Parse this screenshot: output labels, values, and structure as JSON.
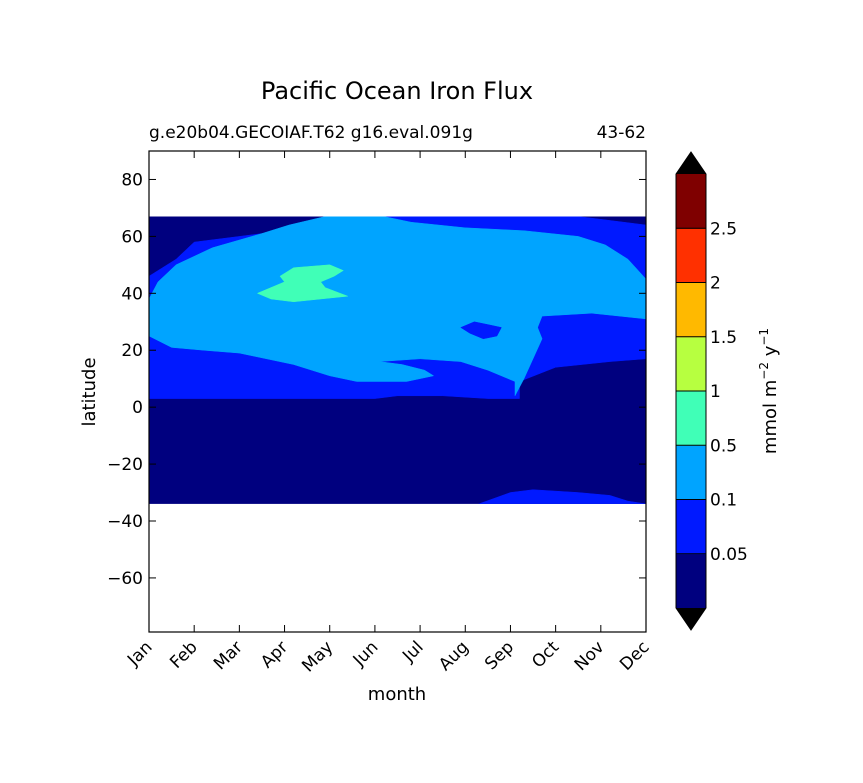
{
  "chart_data": {
    "type": "heatmap",
    "title": "Pacific Ocean Iron Flux",
    "subtitle_left": "g.e20b04.GECOIAF.T62 g16.eval.091g",
    "subtitle_right": "43-62",
    "xlabel": "month",
    "ylabel": "latitude",
    "x_ticks": [
      "Jan",
      "Feb",
      "Mar",
      "Apr",
      "May",
      "Jun",
      "Jul",
      "Aug",
      "Sep",
      "Oct",
      "Nov",
      "Dec"
    ],
    "ylim": [
      -79,
      90
    ],
    "y_ticks": [
      -60,
      -40,
      -20,
      0,
      20,
      40,
      60,
      80
    ],
    "y_tick_labels": [
      "−60",
      "−40",
      "−20",
      "0",
      "20",
      "40",
      "60",
      "80"
    ],
    "data_extent": {
      "lat_min": -34,
      "lat_max": 67
    },
    "colorbar": {
      "label_main": "mmol m",
      "label_exp1": "−2",
      "label_mid": " y",
      "label_exp2": "−1",
      "levels": [
        0.05,
        0.1,
        0.5,
        1,
        1.5,
        2,
        2.5
      ],
      "tick_labels": [
        "0.05",
        "0.1",
        "0.5",
        "1",
        "1.5",
        "2",
        "2.5"
      ],
      "colors": [
        "#00007f",
        "#0019ff",
        "#00a4ff",
        "#40ffb7",
        "#b7ff40",
        "#ffb900",
        "#ff3000",
        "#7f0000"
      ],
      "extend": "both",
      "extend_color": "#000000"
    },
    "regions": [
      {
        "level": 0,
        "polygon": [
          [
            0,
            -34
          ],
          [
            11,
            -34
          ],
          [
            11,
            67
          ],
          [
            0,
            67
          ]
        ]
      },
      {
        "level": 1,
        "polygon": [
          [
            0,
            46
          ],
          [
            0.6,
            52
          ],
          [
            1,
            58
          ],
          [
            2,
            60
          ],
          [
            3,
            62
          ],
          [
            3.7,
            66
          ],
          [
            3.9,
            67
          ],
          [
            9.5,
            67
          ],
          [
            10,
            66
          ],
          [
            11,
            64
          ],
          [
            11,
            17
          ],
          [
            10.2,
            16
          ],
          [
            9,
            14
          ],
          [
            8.2,
            9
          ],
          [
            8.2,
            3
          ],
          [
            7.5,
            3
          ],
          [
            6.5,
            4
          ],
          [
            5.5,
            4
          ],
          [
            5,
            3
          ],
          [
            0,
            3
          ]
        ]
      },
      {
        "level": 1,
        "polygon": [
          [
            7.3,
            -34
          ],
          [
            8,
            -30
          ],
          [
            8.5,
            -29
          ],
          [
            9.5,
            -30
          ],
          [
            10.2,
            -31
          ],
          [
            10.6,
            -33
          ],
          [
            11,
            -34
          ]
        ]
      },
      {
        "level": 2,
        "polygon": [
          [
            0,
            25
          ],
          [
            0.5,
            21
          ],
          [
            1.2,
            20
          ],
          [
            2,
            19
          ],
          [
            2.6,
            17
          ],
          [
            3.2,
            15
          ],
          [
            4,
            11
          ],
          [
            4.6,
            9
          ],
          [
            5.7,
            9
          ],
          [
            6.3,
            11
          ],
          [
            6.1,
            13
          ],
          [
            5.6,
            15
          ],
          [
            5.1,
            16
          ],
          [
            6,
            17
          ],
          [
            6.9,
            16
          ],
          [
            7.5,
            13
          ],
          [
            8.1,
            9
          ],
          [
            8.1,
            4
          ],
          [
            8.3,
            10
          ],
          [
            8.7,
            24
          ],
          [
            8.6,
            28
          ],
          [
            8.7,
            32
          ],
          [
            9.8,
            33
          ],
          [
            11,
            31
          ],
          [
            11,
            45
          ],
          [
            10.6,
            52
          ],
          [
            10.1,
            57
          ],
          [
            9.5,
            60
          ],
          [
            8.3,
            62
          ],
          [
            7,
            63
          ],
          [
            5.8,
            65
          ],
          [
            5.2,
            67
          ],
          [
            3.9,
            67
          ],
          [
            3.1,
            64
          ],
          [
            2.5,
            61
          ],
          [
            1.4,
            56
          ],
          [
            0.6,
            50
          ],
          [
            0.2,
            44
          ],
          [
            0,
            38
          ]
        ]
      },
      {
        "level": 1,
        "polygon": [
          [
            6.9,
            28
          ],
          [
            7.1,
            26
          ],
          [
            7.4,
            24
          ],
          [
            7.7,
            25
          ],
          [
            7.8,
            28
          ],
          [
            7.5,
            29
          ],
          [
            7.2,
            30
          ]
        ]
      },
      {
        "level": 3,
        "polygon": [
          [
            2.4,
            40
          ],
          [
            3.0,
            44
          ],
          [
            2.9,
            46
          ],
          [
            3.2,
            49
          ],
          [
            4.0,
            50
          ],
          [
            4.3,
            48
          ],
          [
            4.1,
            46
          ],
          [
            3.8,
            44
          ],
          [
            3.9,
            42
          ],
          [
            4.4,
            39
          ],
          [
            3.2,
            37
          ],
          [
            2.7,
            38
          ]
        ]
      }
    ]
  }
}
